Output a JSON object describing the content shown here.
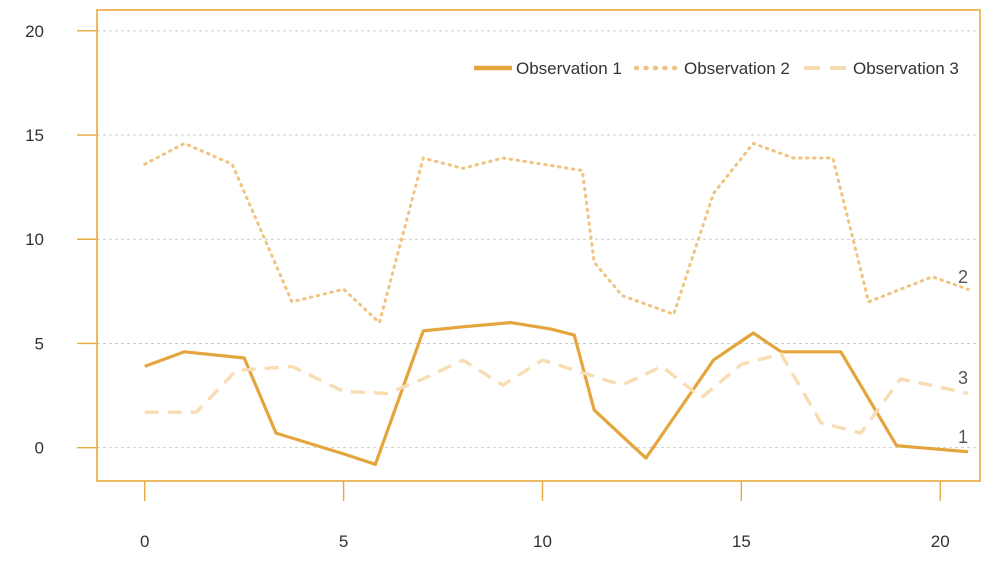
{
  "colors": {
    "frame": "#E9A93F",
    "grid": "#cccccc",
    "obs1": "#E5A53D",
    "obs2": "#F0C37E",
    "obs3": "#F8DDB3"
  },
  "chart_data": {
    "type": "line",
    "title": "",
    "xlabel": "",
    "ylabel": "",
    "xlim": [
      -1.2,
      21.0
    ],
    "ylim": [
      -1.6,
      21.0
    ],
    "x_ticks": [
      "0",
      "5",
      "10",
      "15",
      "20"
    ],
    "y_ticks": [
      "0",
      "5",
      "10",
      "15",
      "20"
    ],
    "grid": "horizontal-dashed",
    "legend": {
      "position": "top-right"
    },
    "series": [
      {
        "name": "Observation 1",
        "style": "solid",
        "end_label": "1",
        "x": [
          0,
          1,
          2.5,
          3.3,
          5.0,
          5.8,
          7.0,
          8.0,
          9.2,
          10.2,
          10.8,
          11.3,
          12.6,
          14.3,
          15.3,
          16.0,
          17.5,
          18.9,
          20.7
        ],
        "y": [
          3.9,
          4.6,
          4.3,
          0.7,
          -0.3,
          -0.8,
          5.6,
          5.8,
          6.0,
          5.7,
          5.4,
          1.8,
          -0.5,
          4.2,
          5.5,
          4.6,
          4.6,
          0.1,
          -0.2
        ]
      },
      {
        "name": "Observation 2",
        "style": "dotted",
        "end_label": "2",
        "x": [
          0,
          1,
          2.2,
          3.7,
          5.0,
          5.9,
          7.0,
          8.0,
          9.0,
          10.0,
          11.0,
          11.3,
          12.0,
          13.3,
          14.3,
          15.3,
          16.3,
          17.3,
          18.2,
          19.0,
          19.8,
          20.7
        ],
        "y": [
          13.6,
          14.6,
          13.6,
          7.0,
          7.6,
          6.0,
          13.9,
          13.4,
          13.9,
          13.6,
          13.3,
          8.9,
          7.3,
          6.4,
          12.2,
          14.6,
          13.9,
          13.9,
          7.0,
          7.6,
          8.2,
          7.6
        ]
      },
      {
        "name": "Observation 3",
        "style": "dashed",
        "end_label": "3",
        "x": [
          0,
          1.3,
          2.3,
          3.7,
          5.0,
          6.1,
          7.0,
          8.0,
          9.0,
          10.0,
          11.0,
          12.0,
          13.0,
          14.0,
          15.0,
          16.0,
          17.0,
          18.0,
          19.0,
          20.0,
          20.7
        ],
        "y": [
          1.7,
          1.7,
          3.7,
          3.9,
          2.7,
          2.6,
          3.3,
          4.2,
          3.0,
          4.2,
          3.6,
          3.0,
          3.9,
          2.4,
          4.0,
          4.5,
          1.2,
          0.7,
          3.3,
          2.9,
          2.6
        ]
      }
    ]
  }
}
